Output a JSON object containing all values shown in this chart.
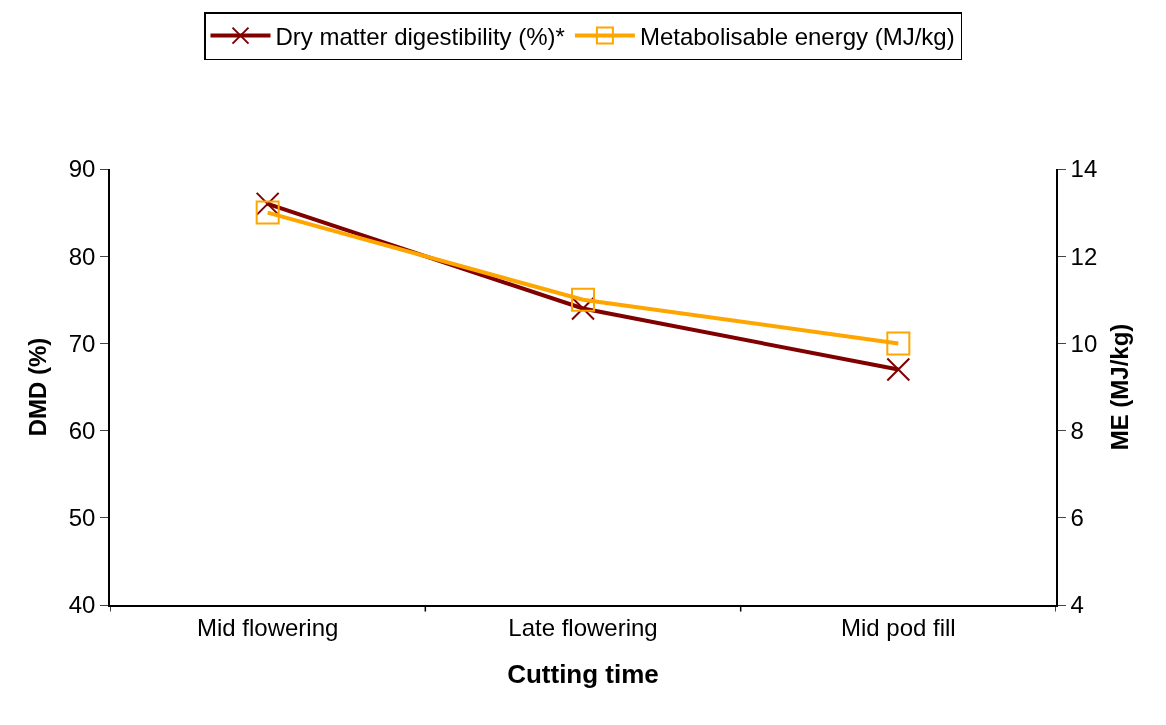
{
  "chart_data": {
    "type": "line",
    "xlabel": "Cutting time",
    "ylabel": "DMD (%)",
    "y2label": "ME (MJ/kg)",
    "categories": [
      "Mid flowering",
      "Late flowering",
      "Mid pod fill"
    ],
    "series": [
      {
        "name": "Dry matter digestibility (%)*",
        "color": "#800000",
        "values": [
          86,
          74,
          67
        ],
        "marker": "cross"
      },
      {
        "name": "Metabolisable energy (MJ/kg)",
        "color": "#ffa500",
        "values": [
          13,
          11,
          10
        ],
        "marker": "square",
        "axis": "y2"
      }
    ],
    "ylim": [
      40,
      90
    ],
    "yticks": [
      40,
      50,
      60,
      70,
      80,
      90
    ],
    "y2lim": [
      4,
      14
    ],
    "y2ticks": [
      4,
      6,
      8,
      10,
      12,
      14
    ],
    "legend": "top",
    "line_style": "solid"
  }
}
